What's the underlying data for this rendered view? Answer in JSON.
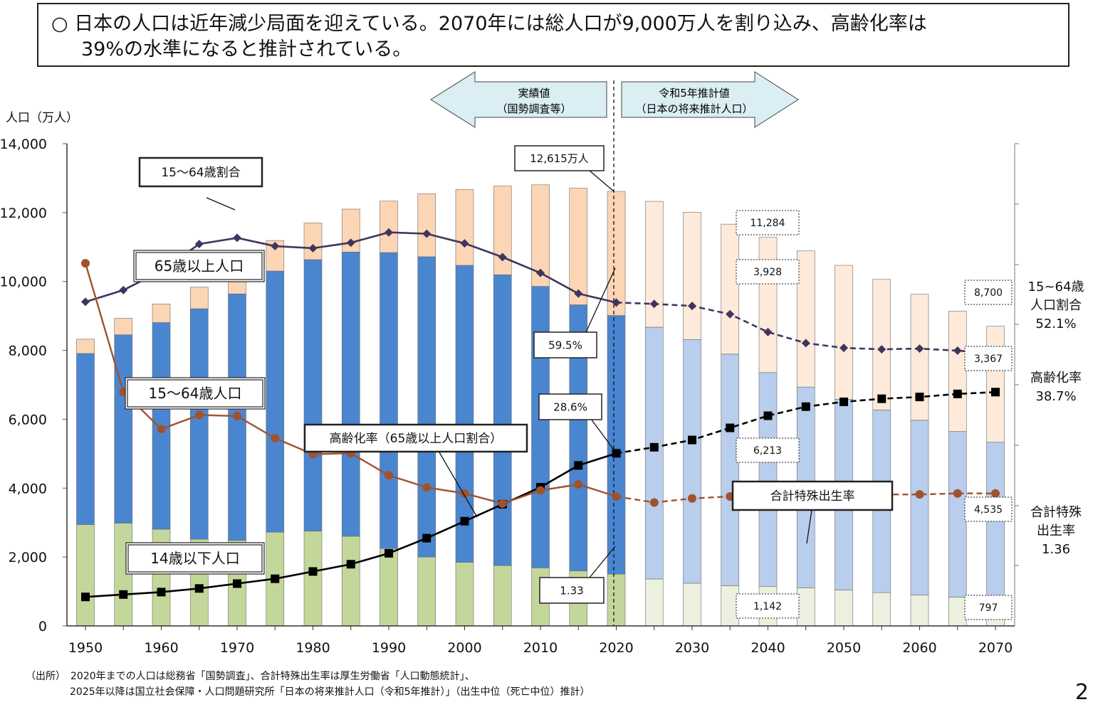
{
  "headline": {
    "line1": "○ 日本の人口は近年減少局面を迎えている。2070年には総人口が9,000万人を割り込み、高齢化率は",
    "line2": "39%の水準になると推計されている。"
  },
  "chart_data": {
    "type": "bar",
    "ylabel": "人口（万人）",
    "ylim": [
      0,
      14000
    ],
    "yticks": [
      "0",
      "2,000",
      "4,000",
      "6,000",
      "8,000",
      "10,000",
      "12,000",
      "14,000"
    ],
    "xticks": [
      "1950",
      "1960",
      "1970",
      "1980",
      "1990",
      "2000",
      "2010",
      "2020",
      "2030",
      "2040",
      "2050",
      "2060",
      "2070"
    ],
    "categories": [
      1950,
      1955,
      1960,
      1965,
      1970,
      1975,
      1980,
      1985,
      1990,
      1995,
      2000,
      2005,
      2010,
      2015,
      2020,
      2025,
      2030,
      2035,
      2040,
      2045,
      2050,
      2055,
      2060,
      2065,
      2070
    ],
    "series": [
      {
        "name": "14歳以下人口",
        "values": [
          2943,
          2980,
          2807,
          2517,
          2482,
          2722,
          2751,
          2603,
          2249,
          2001,
          1847,
          1752,
          1684,
          1595,
          1503,
          1363,
          1240,
          1169,
          1142,
          1103,
          1041,
          966,
          893,
          836,
          797
        ]
      },
      {
        "name": "15〜64歳人口",
        "values": [
          4966,
          5473,
          6000,
          6692,
          7157,
          7581,
          7883,
          8251,
          8590,
          8717,
          8622,
          8442,
          8174,
          7728,
          7509,
          7310,
          7076,
          6722,
          6213,
          5832,
          5540,
          5304,
          5078,
          4809,
          4535
        ]
      },
      {
        "name": "65歳以上人口",
        "values": [
          416,
          479,
          540,
          624,
          739,
          887,
          1065,
          1247,
          1493,
          1828,
          2204,
          2576,
          2948,
          3387,
          3603,
          3653,
          3696,
          3773,
          3928,
          3952,
          3888,
          3792,
          3657,
          3493,
          3367
        ]
      }
    ],
    "line_series": [
      {
        "name": "15〜64歳割合",
        "values": [
          59.6,
          61.3,
          64.1,
          68.0,
          68.9,
          67.7,
          67.4,
          68.2,
          69.7,
          69.5,
          68.1,
          66.1,
          63.8,
          60.8,
          59.5,
          59.3,
          59.0,
          57.8,
          55.2,
          53.6,
          52.9,
          52.7,
          52.8,
          52.5,
          52.1
        ]
      },
      {
        "name": "高齢化率（65歳以上人口割合）",
        "values": [
          4.9,
          5.3,
          5.7,
          6.3,
          7.1,
          7.9,
          9.1,
          10.3,
          12.1,
          14.6,
          17.4,
          20.2,
          23.0,
          26.6,
          28.6,
          29.6,
          30.8,
          32.8,
          34.8,
          36.3,
          37.1,
          37.6,
          37.9,
          38.4,
          38.7
        ]
      },
      {
        "name": "合計特殊出生率",
        "values": [
          3.65,
          2.37,
          2.0,
          2.14,
          2.13,
          1.91,
          1.75,
          1.76,
          1.54,
          1.42,
          1.36,
          1.26,
          1.39,
          1.45,
          1.33,
          1.27,
          1.31,
          1.33,
          1.34,
          1.34,
          1.35,
          1.35,
          1.35,
          1.36,
          1.36
        ]
      }
    ],
    "labels": {
      "ratio_1564": "15〜64歳割合",
      "pop_65": "65歳以上人口",
      "pop_1564": "15〜64歳人口",
      "pop_014": "14歳以下人口",
      "aging": "高齢化率（65歳以上人口割合）",
      "tfr": "合計特殊出生率",
      "actual": [
        "実績値",
        "（国勢調査等）"
      ],
      "projection": [
        "令和5年推計値",
        "（日本の将来推計人口）"
      ],
      "total2020": "12,615万人",
      "v595": "59.5%",
      "v286": "28.6%",
      "v133": "1.33",
      "d11284": "11,284",
      "d3928": "3,928",
      "d6213": "6,213",
      "d1142": "1,142",
      "d8700": "8,700",
      "d3367": "3,367",
      "d4535": "4,535",
      "d797": "797",
      "r1564": [
        "15~64歳",
        "人口割合",
        "52.1%"
      ],
      "raging": [
        "高齢化率",
        "38.7%"
      ],
      "rtfr": [
        "合計特殊",
        "出生率",
        "1.36"
      ]
    },
    "colors": {
      "c014_actual": "#c4d79b",
      "c014_proj": "#ebf1de",
      "c1564_actual": "#4a86d0",
      "c1564_proj": "#b9cdec",
      "c65_actual": "#fcd5b5",
      "c65_proj": "#fdeada",
      "line_ratio": "#40355e",
      "line_aging": "#000000",
      "line_tfr": "#a0522d",
      "arrow_fill": "#daeef3"
    }
  },
  "source": {
    "line1": "（出所）　2020年までの人口は総務省「国勢調査」、合計特殊出生率は厚生労働省「人口動態統計」、",
    "line2": "2025年以降は国立社会保障・人口問題研究所「日本の将来推計人口（令和5年推計）」（出生中位（死亡中位）推計）"
  },
  "page_number": "2"
}
